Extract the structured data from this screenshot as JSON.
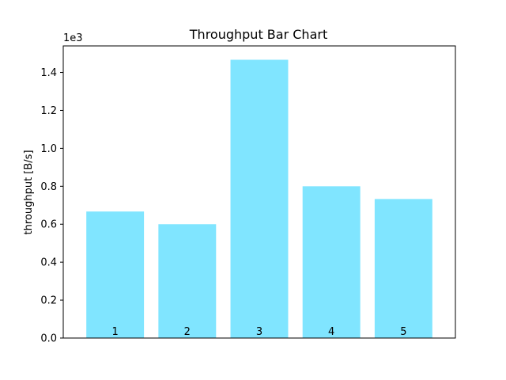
{
  "chart_data": {
    "type": "bar",
    "title": "Throughput Bar Chart",
    "xlabel": "",
    "ylabel": "throughput [B/s]",
    "y_offset_label": "1e3",
    "categories": [
      "1",
      "2",
      "3",
      "4",
      "5"
    ],
    "values": [
      667,
      600,
      1467,
      800,
      733
    ],
    "ylim": [
      0,
      1540
    ],
    "yticks": [
      0,
      200,
      400,
      600,
      800,
      1000,
      1200,
      1400
    ],
    "ytick_labels": [
      "0.0",
      "0.2",
      "0.4",
      "0.6",
      "0.8",
      "1.0",
      "1.2",
      "1.4"
    ],
    "grid": false,
    "bar_color": "#80e5ff",
    "bar_labels_inside_bottom": true
  }
}
